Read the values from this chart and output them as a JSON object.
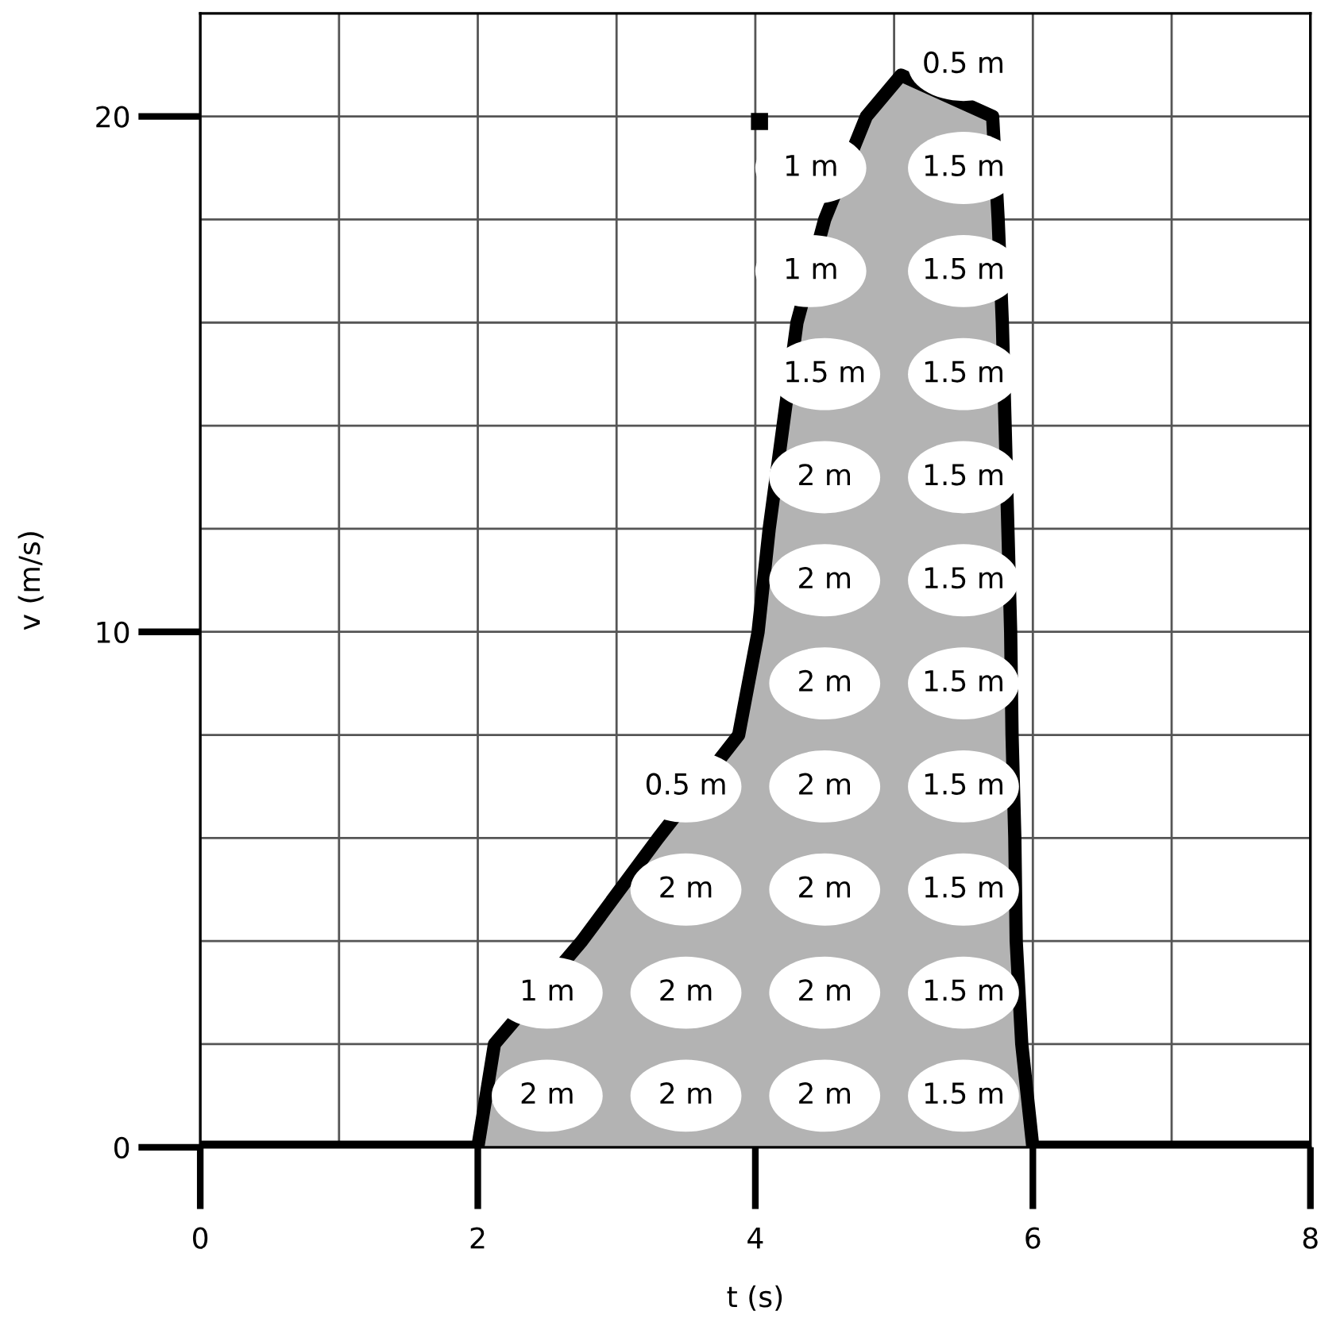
{
  "chart_data": {
    "type": "area",
    "xlabel": "t (s)",
    "ylabel": "v (m/s)",
    "x": [
      0,
      2,
      2.12,
      2.75,
      3.3,
      3.88,
      4.02,
      4.1,
      4.2,
      4.3,
      4.5,
      4.8,
      5.05,
      5.71,
      5.75,
      5.78,
      5.8,
      5.82,
      5.84,
      5.85,
      5.87,
      5.88,
      5.92,
      6,
      8
    ],
    "series": [
      {
        "color": "#b3b3b3",
        "values": [
          0,
          0,
          2,
          4,
          6,
          8,
          10,
          12,
          14,
          16,
          18,
          20,
          20.8,
          20,
          18,
          16,
          14,
          12,
          10,
          8,
          6,
          4,
          2,
          0,
          0
        ]
      },
      {
        "type": "scatter",
        "color": "#000000",
        "marker": "square",
        "x": [
          4.03
        ],
        "values": [
          19.9
        ]
      }
    ],
    "xlim": [
      0,
      8
    ],
    "ylim": [
      0,
      22
    ],
    "xticks": [
      0,
      {
        "value": 1,
        "label": null
      },
      2,
      {
        "value": 3,
        "label": null
      },
      4,
      {
        "value": 5,
        "label": null
      },
      6,
      {
        "value": 7,
        "label": null
      },
      8
    ],
    "yticks": [
      0,
      {
        "value": 2,
        "label": null
      },
      {
        "value": 4,
        "label": null
      },
      {
        "value": 6,
        "label": null
      },
      {
        "value": 8,
        "label": null
      },
      10,
      {
        "value": 12,
        "label": null
      },
      {
        "value": 14,
        "label": null
      },
      {
        "value": 16,
        "label": null
      },
      {
        "value": 18,
        "label": null
      },
      20
    ],
    "grid": true,
    "annotations": [
      "2 m",
      "2 m",
      "2 m",
      "1.5 m",
      "1 m",
      "2 m",
      "2 m",
      "1.5 m",
      "2 m",
      "2 m",
      "1.5 m",
      "0.5 m",
      "2 m",
      "1.5 m",
      "2 m",
      "1.5 m",
      "2 m",
      "1.5 m",
      "2 m",
      "1.5 m",
      "1.5 m",
      "1.5 m",
      "1 m",
      "1.5 m",
      "1 m",
      "1.5 m",
      "0.5 m"
    ]
  }
}
